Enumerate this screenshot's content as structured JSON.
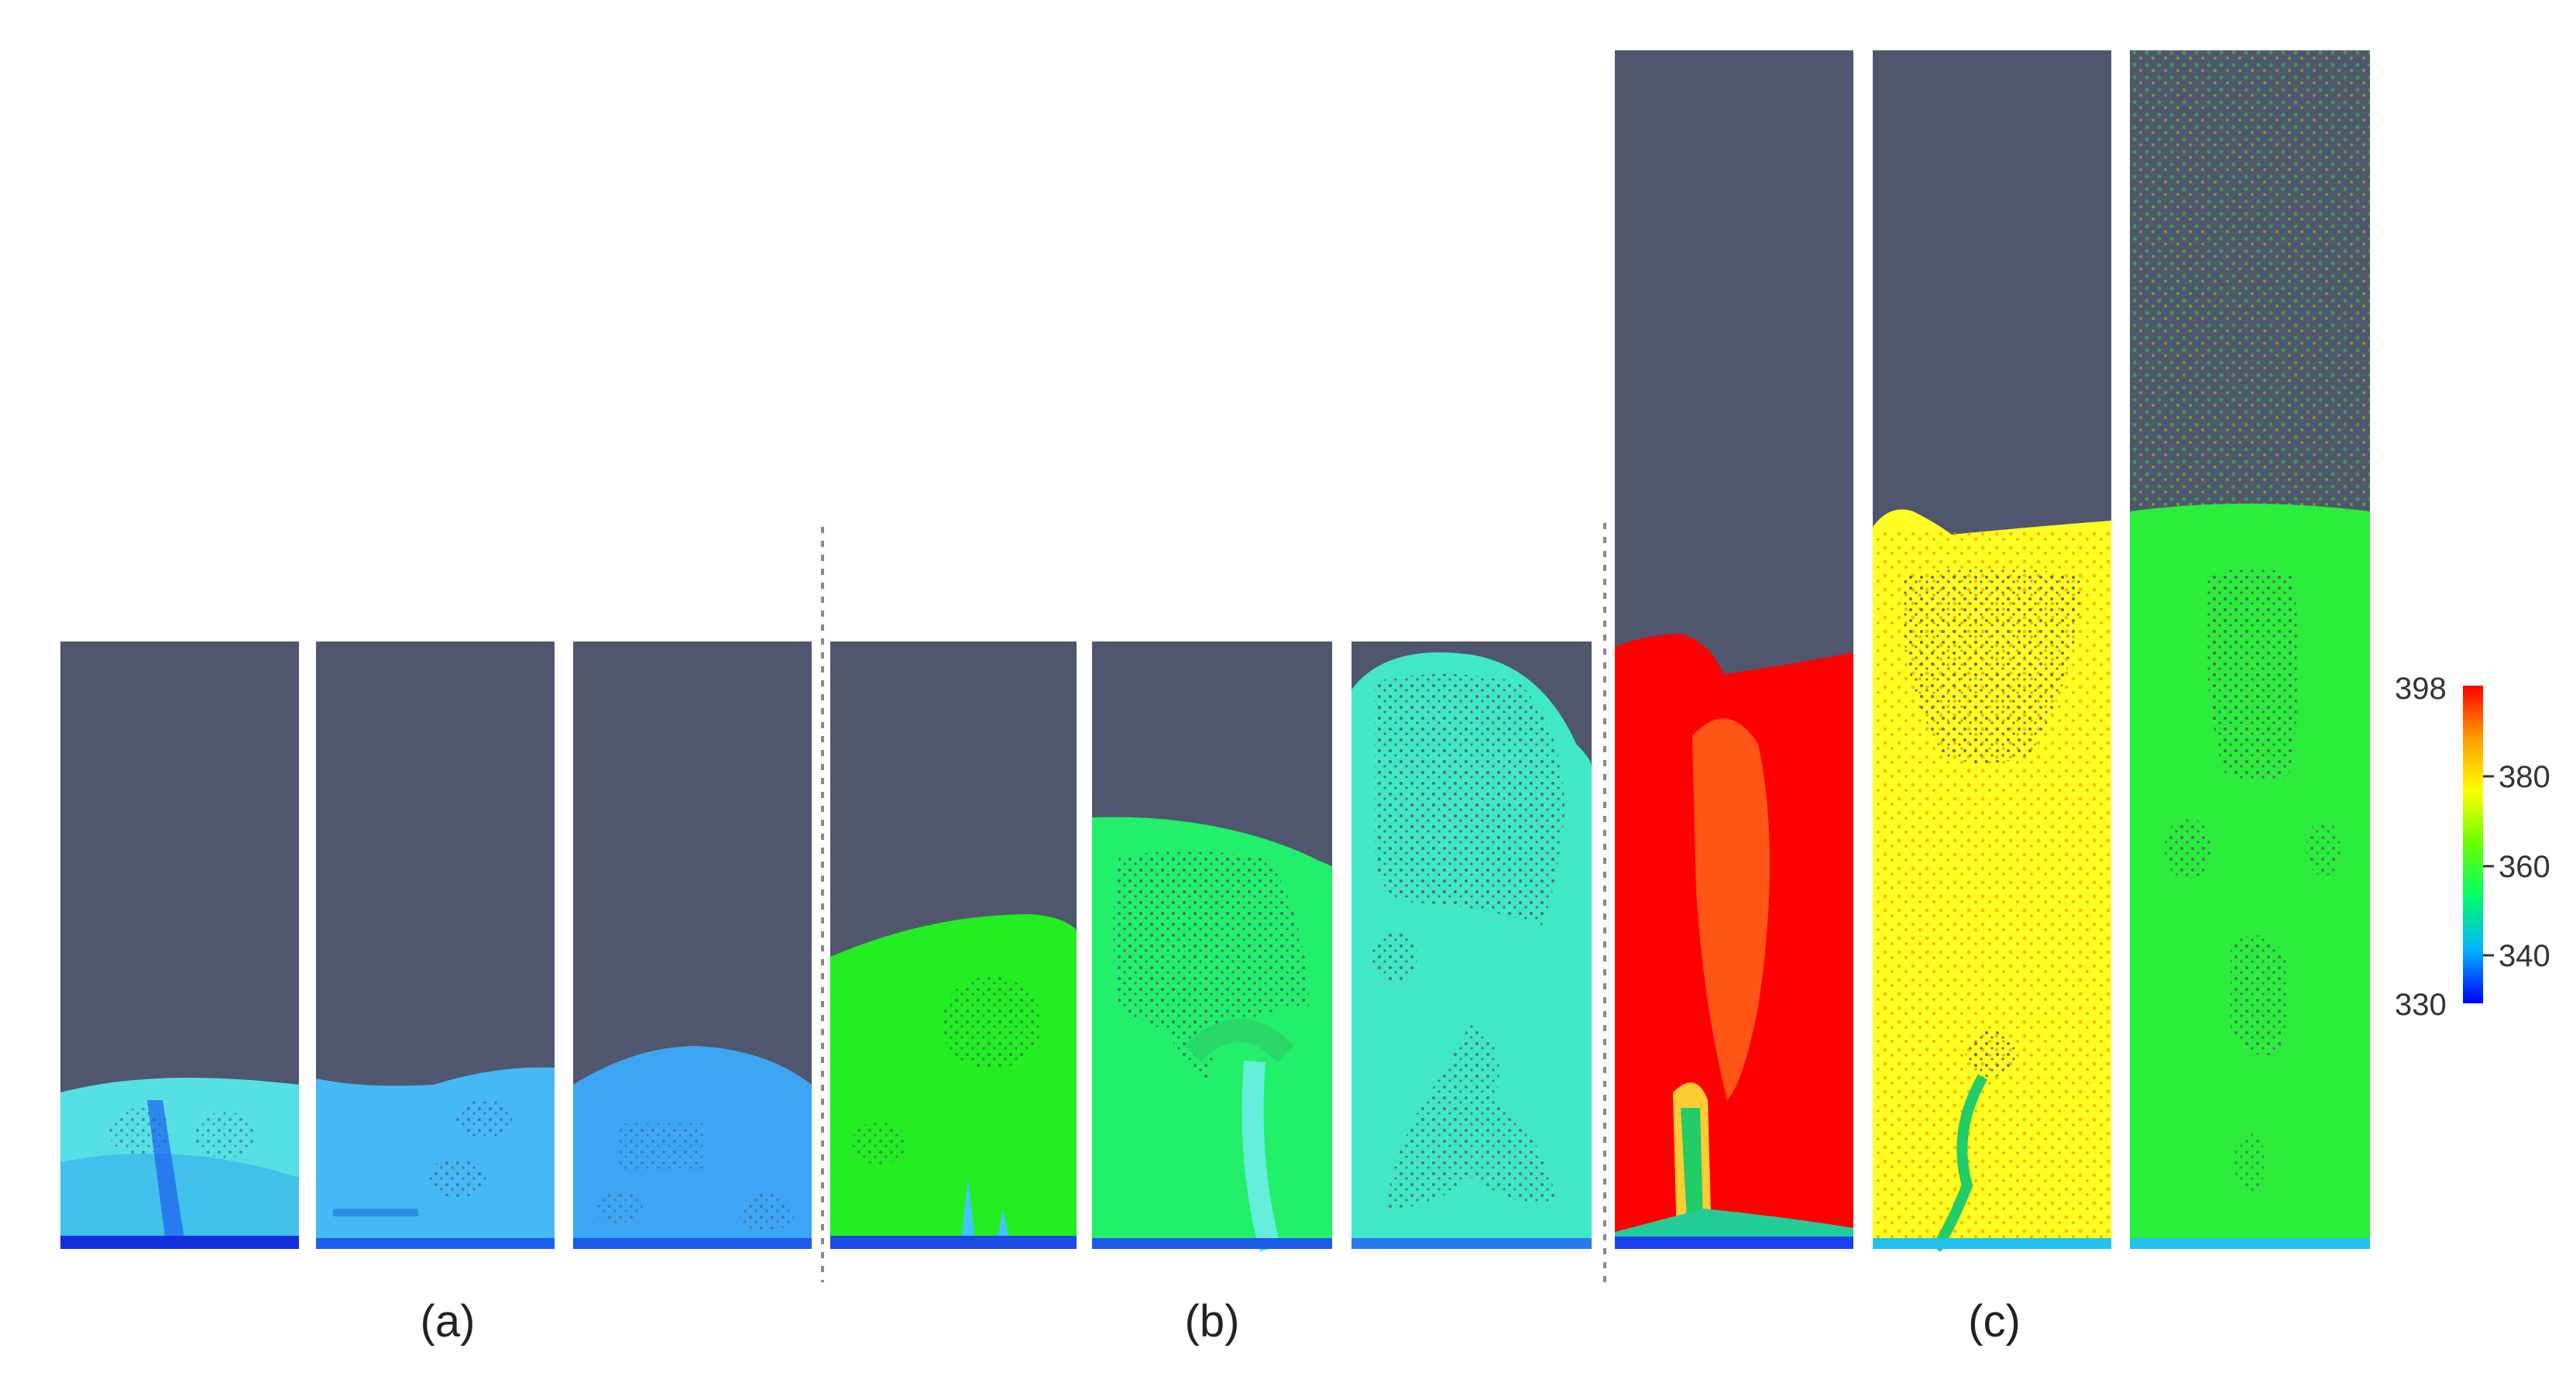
{
  "figure": {
    "groups": [
      {
        "label": "(a)",
        "panels": 3
      },
      {
        "label": "(b)",
        "panels": 3
      },
      {
        "label": "(c)",
        "panels": 3
      }
    ],
    "colorbar": {
      "max_label": "398",
      "ticks": [
        "380",
        "360",
        "340"
      ],
      "min_label": "330",
      "colors": [
        "#0000ff",
        "#00b4ff",
        "#00ff66",
        "#66ff00",
        "#ffff00",
        "#ff9900",
        "#ff0000"
      ]
    },
    "colors": {
      "background": "#ffffff",
      "empty_region": "#4f566d",
      "divider": "#888888"
    }
  }
}
